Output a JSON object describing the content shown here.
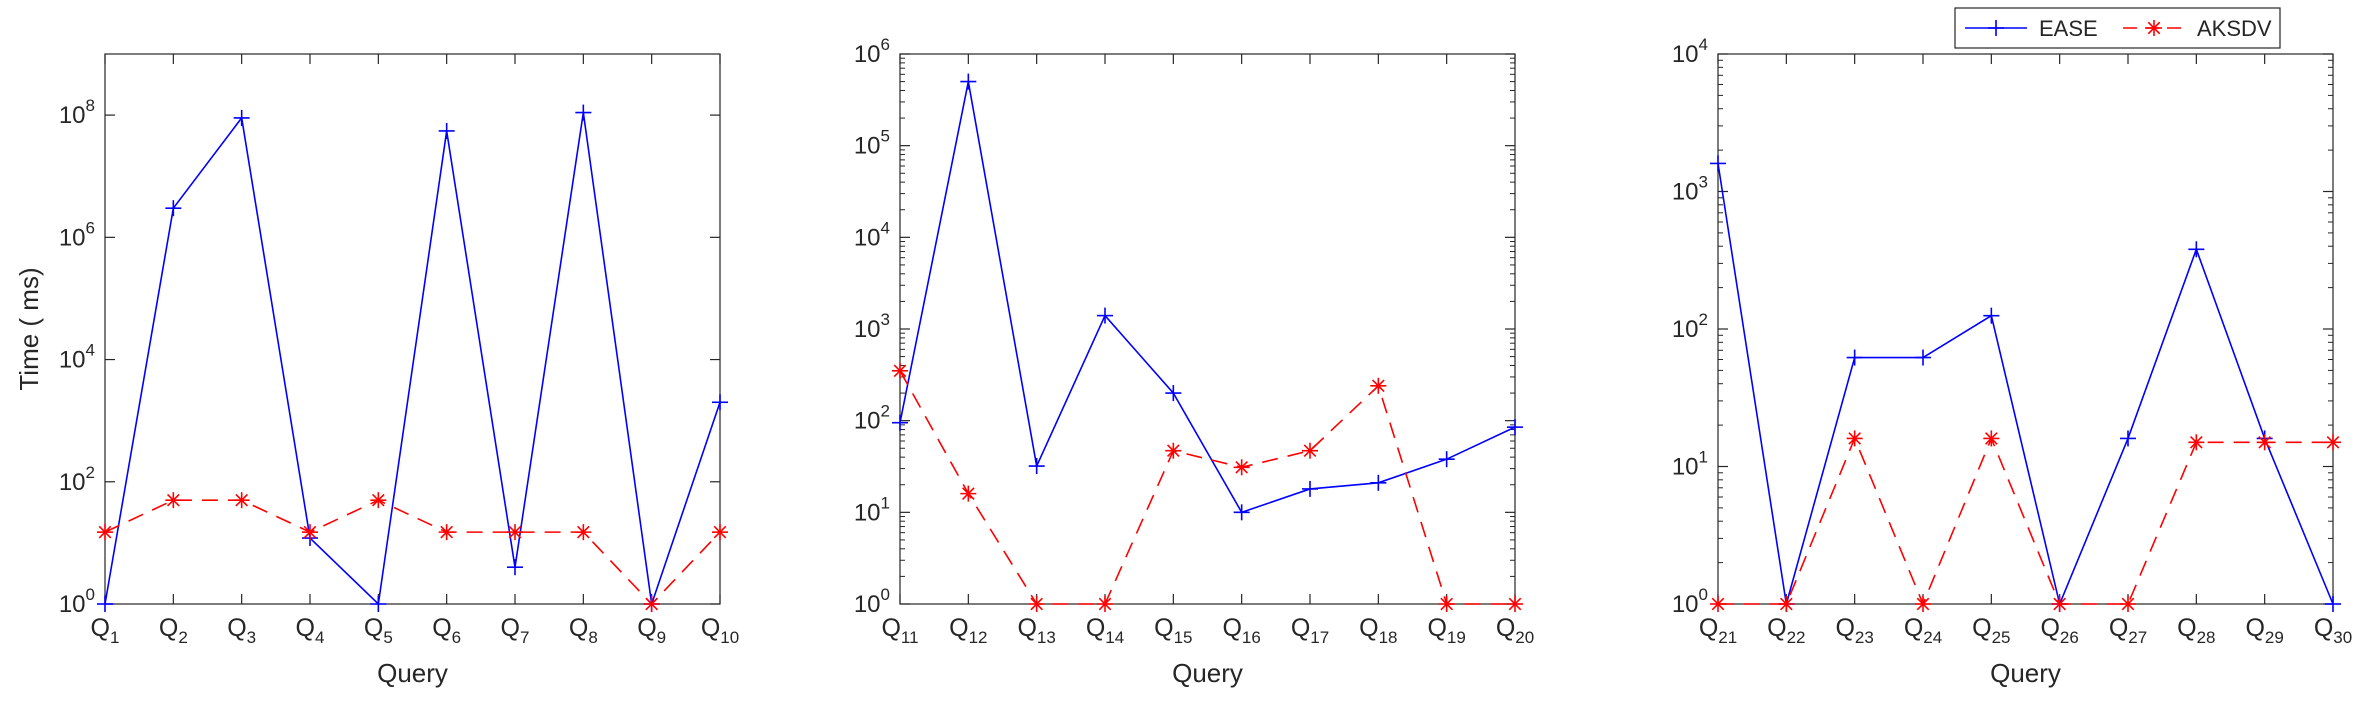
{
  "figure": {
    "legend_position": "top-right",
    "series_style": {
      "EASE": {
        "color": "#0000FF",
        "marker": "plus",
        "line": "solid"
      },
      "AKSDV": {
        "color": "#FF0000",
        "marker": "asterisk",
        "line": "dashed"
      }
    }
  },
  "chart_data": [
    {
      "type": "line",
      "yscale": "log",
      "ylim": [
        1,
        1000000000
      ],
      "yticks": [
        1,
        100,
        10000,
        1000000,
        100000000
      ],
      "ylabel": "Time ( ms)",
      "xlabel": "Query",
      "grid": false,
      "categories": [
        {
          "base": "Q",
          "sub": "1"
        },
        {
          "base": "Q",
          "sub": "2"
        },
        {
          "base": "Q",
          "sub": "3"
        },
        {
          "base": "Q",
          "sub": "4"
        },
        {
          "base": "Q",
          "sub": "5"
        },
        {
          "base": "Q",
          "sub": "6"
        },
        {
          "base": "Q",
          "sub": "7"
        },
        {
          "base": "Q",
          "sub": "8"
        },
        {
          "base": "Q",
          "sub": "9"
        },
        {
          "base": "Q",
          "sub": "10"
        }
      ],
      "series": [
        {
          "name": "EASE",
          "values": [
            1,
            3000000,
            90000000,
            12,
            1,
            55000000,
            4,
            110000000,
            1,
            2000
          ]
        },
        {
          "name": "AKSDV",
          "values": [
            15,
            50,
            50,
            15,
            50,
            15,
            15,
            15,
            1,
            15
          ]
        }
      ]
    },
    {
      "type": "line",
      "yscale": "log",
      "ylim": [
        1,
        1000000
      ],
      "yticks": [
        1,
        10,
        100,
        1000,
        10000,
        100000,
        1000000
      ],
      "ylabel": "",
      "xlabel": "Query",
      "grid": false,
      "categories": [
        {
          "base": "Q",
          "sub": "11"
        },
        {
          "base": "Q",
          "sub": "12"
        },
        {
          "base": "Q",
          "sub": "13"
        },
        {
          "base": "Q",
          "sub": "14"
        },
        {
          "base": "Q",
          "sub": "15"
        },
        {
          "base": "Q",
          "sub": "16"
        },
        {
          "base": "Q",
          "sub": "17"
        },
        {
          "base": "Q",
          "sub": "18"
        },
        {
          "base": "Q",
          "sub": "19"
        },
        {
          "base": "Q",
          "sub": "20"
        }
      ],
      "series": [
        {
          "name": "EASE",
          "values": [
            95,
            500000,
            32,
            1400,
            200,
            10,
            18,
            21,
            38,
            85
          ]
        },
        {
          "name": "AKSDV",
          "values": [
            350,
            16,
            1,
            1,
            47,
            31,
            47,
            240,
            1,
            1
          ]
        }
      ]
    },
    {
      "type": "line",
      "yscale": "log",
      "ylim": [
        1,
        10000
      ],
      "yticks": [
        1,
        10,
        100,
        1000,
        10000
      ],
      "ylabel": "",
      "xlabel": "Query",
      "grid": false,
      "categories": [
        {
          "base": "Q",
          "sub": "21"
        },
        {
          "base": "Q",
          "sub": "22"
        },
        {
          "base": "Q",
          "sub": "23"
        },
        {
          "base": "Q",
          "sub": "24"
        },
        {
          "base": "Q",
          "sub": "25"
        },
        {
          "base": "Q",
          "sub": "26"
        },
        {
          "base": "Q",
          "sub": "27"
        },
        {
          "base": "Q",
          "sub": "28"
        },
        {
          "base": "Q",
          "sub": "29"
        },
        {
          "base": "Q",
          "sub": "30"
        }
      ],
      "series": [
        {
          "name": "EASE",
          "values": [
            1600,
            1,
            62,
            62,
            125,
            1,
            16,
            380,
            16,
            1
          ]
        },
        {
          "name": "AKSDV",
          "values": [
            1,
            1,
            16,
            1,
            16,
            1,
            1,
            15,
            15,
            15
          ]
        }
      ]
    }
  ],
  "legend": {
    "entries": [
      {
        "label": "EASE",
        "color": "#0000FF",
        "marker": "plus-icon"
      },
      {
        "label": "AKSDV",
        "color": "#FF0000",
        "marker": "asterisk-icon"
      }
    ]
  }
}
